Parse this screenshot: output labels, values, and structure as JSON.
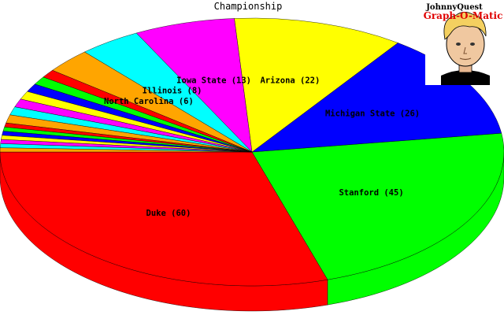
{
  "chart_data": {
    "type": "pie",
    "style": "3d",
    "title": "Championship",
    "slices": [
      {
        "label": "Duke (60)",
        "value": 60,
        "color": "#ff0000"
      },
      {
        "label": "Stanford (45)",
        "value": 45,
        "color": "#00ff00"
      },
      {
        "label": "Michigan State (26)",
        "value": 26,
        "color": "#0000ff"
      },
      {
        "label": "Arizona (22)",
        "value": 22,
        "color": "#ffff00"
      },
      {
        "label": "Iowa State (13)",
        "value": 13,
        "color": "#ff00ff"
      },
      {
        "label": "Illinois (8)",
        "value": 8,
        "color": "#00ffff"
      },
      {
        "label": "North Carolina (6)",
        "value": 6,
        "color": "#ffa500"
      },
      {
        "label": "",
        "value": 2,
        "color": "#ff0000"
      },
      {
        "label": "",
        "value": 2,
        "color": "#00ff00"
      },
      {
        "label": "",
        "value": 2,
        "color": "#0000ff"
      },
      {
        "label": "",
        "value": 2,
        "color": "#ffff00"
      },
      {
        "label": "",
        "value": 2,
        "color": "#ff00ff"
      },
      {
        "label": "",
        "value": 2,
        "color": "#00ffff"
      },
      {
        "label": "",
        "value": 2,
        "color": "#ffa500"
      },
      {
        "label": "",
        "value": 1,
        "color": "#ff0000"
      },
      {
        "label": "",
        "value": 1,
        "color": "#00ff00"
      },
      {
        "label": "",
        "value": 1,
        "color": "#0000ff"
      },
      {
        "label": "",
        "value": 1,
        "color": "#ffff00"
      },
      {
        "label": "",
        "value": 1,
        "color": "#ff00ff"
      },
      {
        "label": "",
        "value": 1,
        "color": "#00ffff"
      },
      {
        "label": "",
        "value": 1,
        "color": "#ffa500"
      }
    ]
  },
  "logo": {
    "line1": "JohnnyQuest",
    "line2": "Graph-O-Matic"
  }
}
